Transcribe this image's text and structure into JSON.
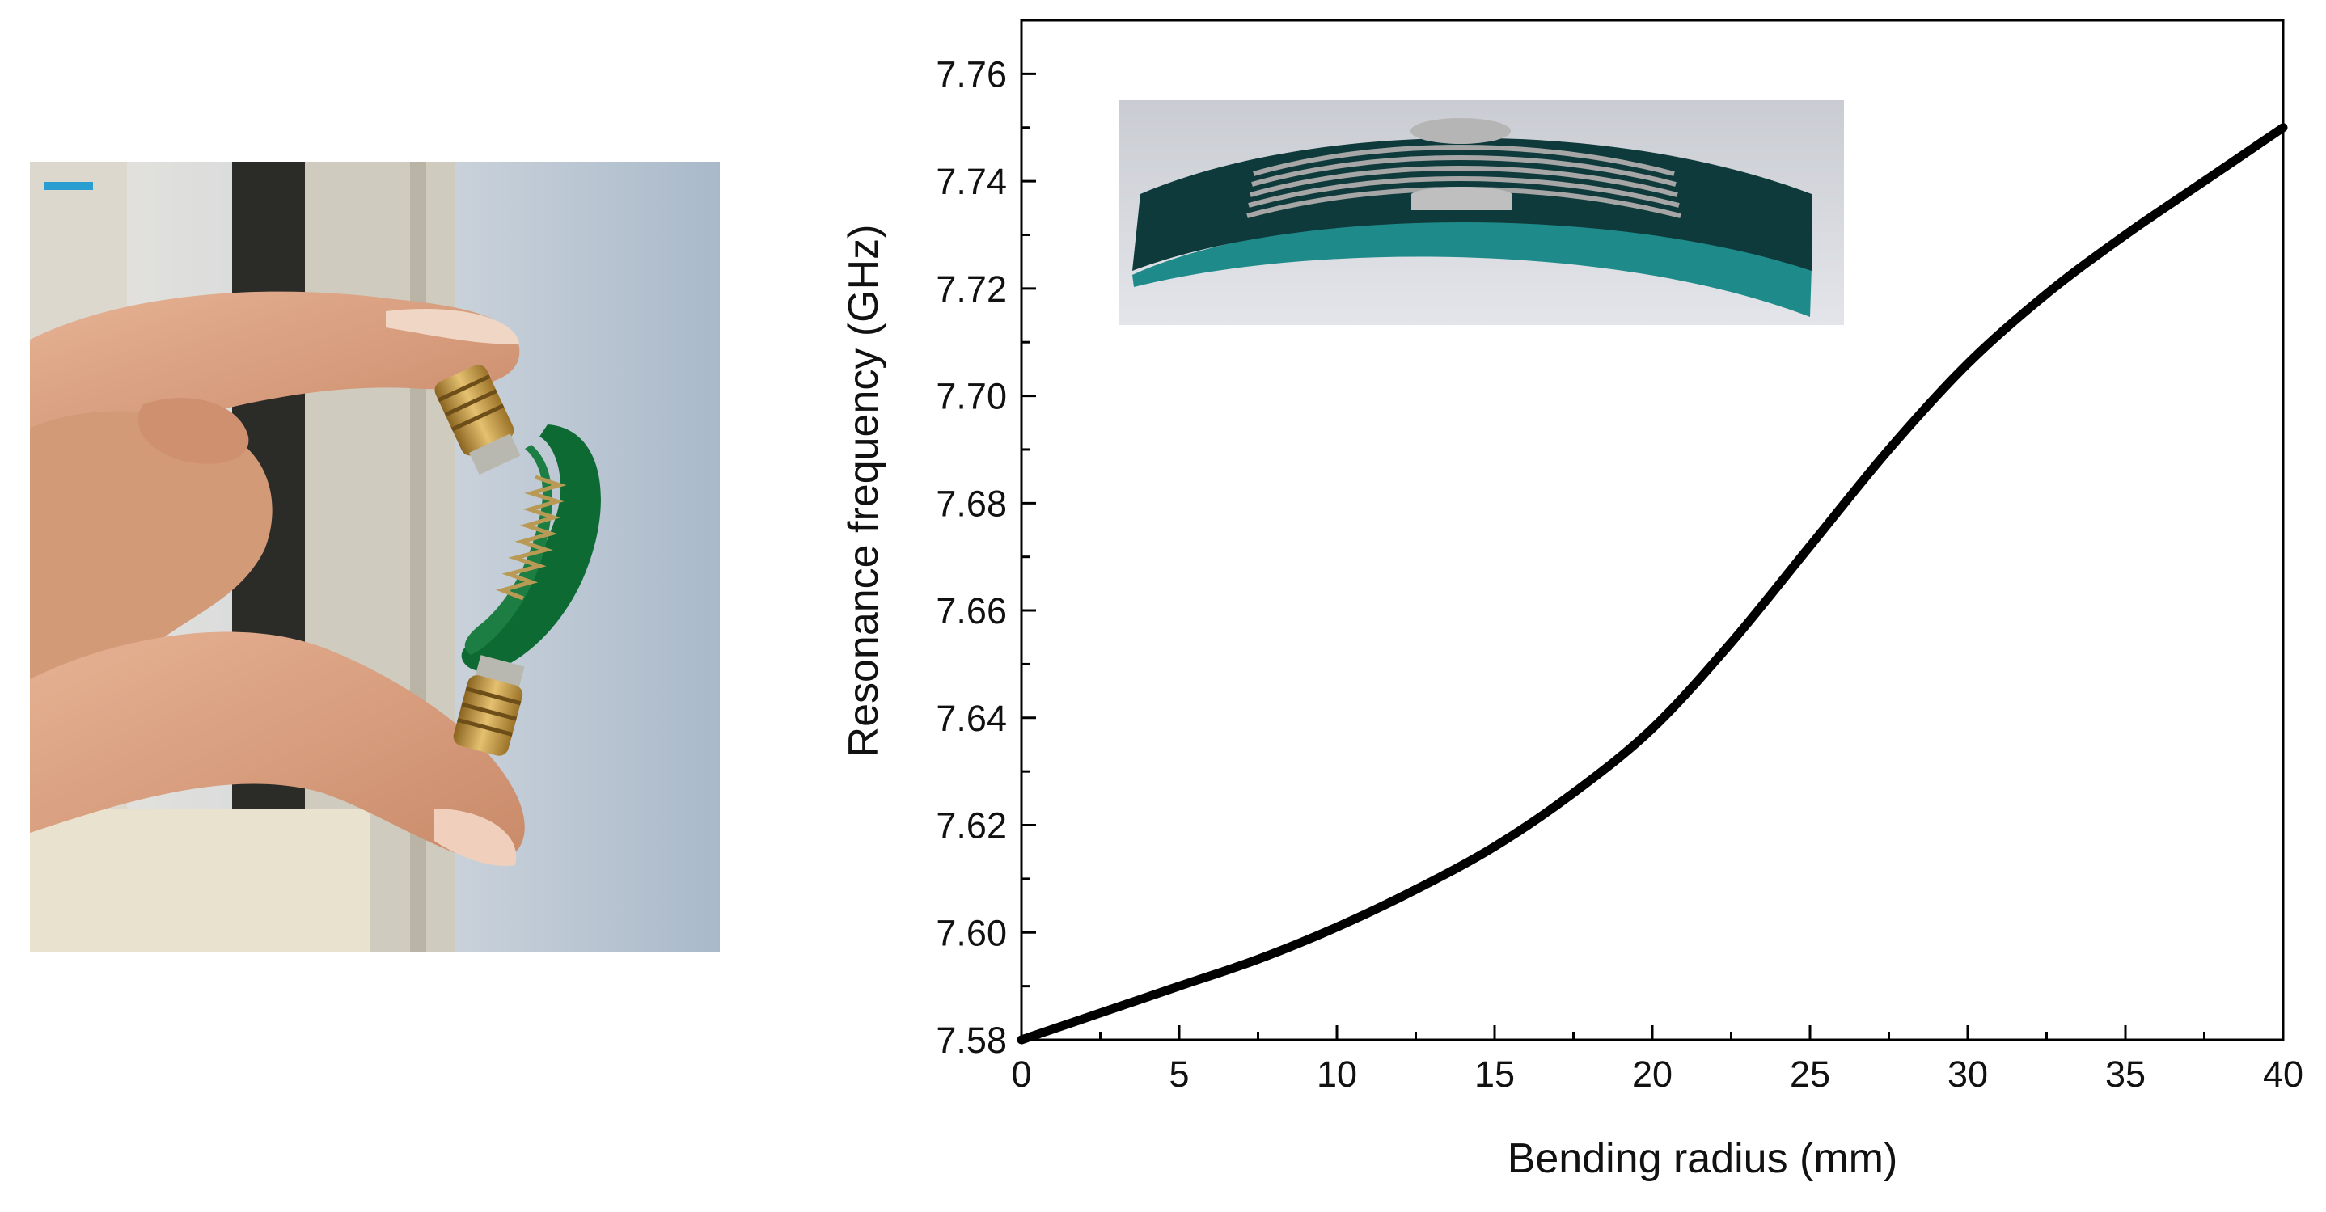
{
  "chart_data": {
    "type": "line",
    "title": "",
    "xlabel": "Bending radius (mm)",
    "ylabel": "Resonance frequency  (GHz)",
    "xlim": [
      0,
      40
    ],
    "ylim": [
      7.58,
      7.77
    ],
    "xticks": [
      "0",
      "5",
      "10",
      "15",
      "20",
      "25",
      "30",
      "35",
      "40"
    ],
    "xtick_values": [
      0,
      5,
      10,
      15,
      20,
      25,
      30,
      35,
      40
    ],
    "yticks": [
      "7.58",
      "7.60",
      "7.62",
      "7.64",
      "7.66",
      "7.68",
      "7.70",
      "7.72",
      "7.74",
      "7.76"
    ],
    "ytick_values": [
      7.58,
      7.6,
      7.62,
      7.64,
      7.66,
      7.68,
      7.7,
      7.72,
      7.74,
      7.76
    ],
    "grid": false,
    "legend": "none",
    "series": [
      {
        "color": "#000000",
        "x": [
          0,
          2.5,
          5,
          7.5,
          10,
          12.5,
          15,
          17.5,
          20,
          22.5,
          25,
          27.5,
          30,
          32.5,
          35,
          37.5,
          40
        ],
        "y": [
          7.58,
          7.585,
          7.59,
          7.595,
          7.601,
          7.608,
          7.616,
          7.626,
          7.638,
          7.654,
          7.672,
          7.69,
          7.706,
          7.719,
          7.73,
          7.74,
          7.75
        ]
      }
    ]
  },
  "figure": {
    "photo_description_icon": "hand-holding-flexible-sensor-photo",
    "inset_icon": "bent-sensor-3d-model-inset"
  },
  "colors": {
    "skin": "#d9a07f",
    "pcb_green": "#0f6b34",
    "connector_gold": "#c99a3a",
    "wall": "#b5c2d0",
    "inset_substrate": "#0d3b3d",
    "inset_edge": "#1f8a8a",
    "inset_metal": "#a8a8a8"
  }
}
